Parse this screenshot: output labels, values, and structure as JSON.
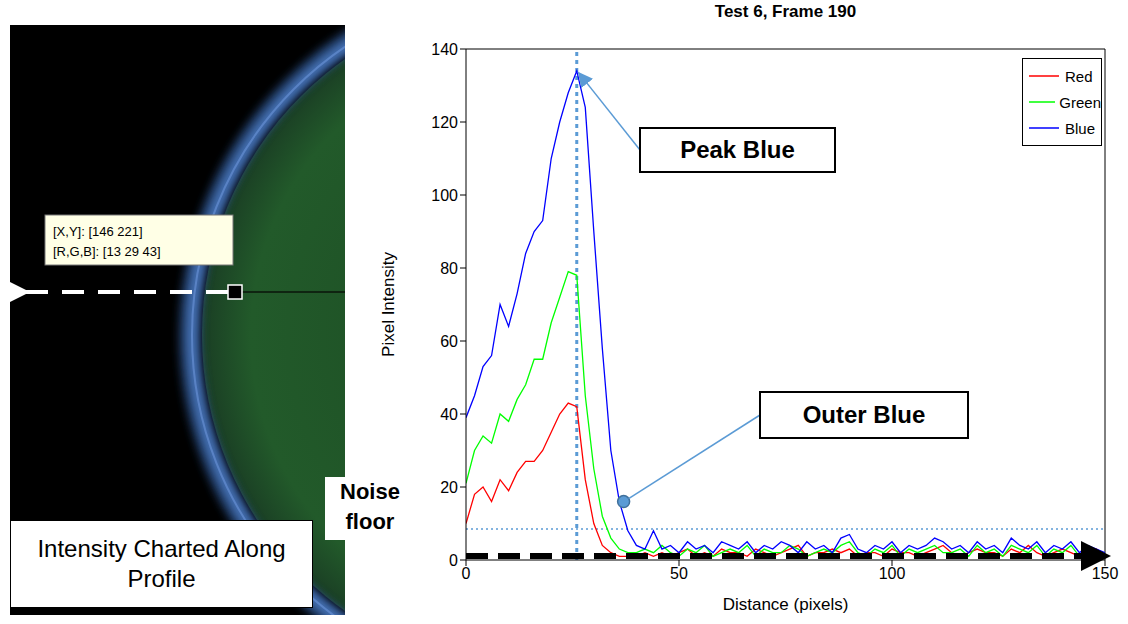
{
  "chart_data": {
    "type": "line",
    "title": "Test 6, Frame 190",
    "x_label": "Distance (pixels)",
    "y_label": "Pixel Intensity",
    "x": [
      0,
      2,
      4,
      6,
      8,
      10,
      12,
      14,
      16,
      18,
      20,
      22,
      24,
      26,
      28,
      30,
      32,
      34,
      36,
      38,
      40,
      42,
      44,
      46,
      48,
      50,
      52,
      54,
      56,
      58,
      60,
      62,
      64,
      66,
      68,
      70,
      72,
      74,
      76,
      78,
      80,
      82,
      84,
      86,
      88,
      90,
      92,
      94,
      96,
      98,
      100,
      102,
      104,
      106,
      108,
      110,
      112,
      114,
      116,
      118,
      120,
      122,
      124,
      126,
      128,
      130,
      132,
      134,
      136,
      138,
      140,
      142,
      144,
      146,
      148,
      150
    ],
    "series": [
      {
        "name": "Red",
        "color": "#ff0000",
        "values": [
          10,
          18,
          20,
          16,
          22,
          19,
          24,
          27,
          27,
          30,
          35,
          40,
          43,
          42,
          22,
          10,
          4,
          2,
          1,
          1,
          1,
          2,
          1,
          2,
          1,
          2,
          3,
          1,
          2,
          1,
          3,
          2,
          2,
          1,
          3,
          2,
          1,
          2,
          3,
          4,
          1,
          2,
          2,
          3,
          2,
          3,
          1,
          2,
          2,
          1,
          3,
          2,
          2,
          1,
          2,
          3,
          4,
          2,
          1,
          2,
          3,
          2,
          2,
          1,
          3,
          2,
          4,
          2,
          1,
          2,
          3,
          2,
          1,
          2,
          3,
          1
        ]
      },
      {
        "name": "Green",
        "color": "#00ff00",
        "values": [
          21,
          30,
          34,
          32,
          40,
          38,
          44,
          48,
          55,
          55,
          65,
          72,
          79,
          78,
          45,
          25,
          12,
          6,
          3,
          2,
          2,
          3,
          2,
          4,
          2,
          1,
          3,
          2,
          4,
          1,
          2,
          3,
          2,
          4,
          1,
          3,
          2,
          2,
          4,
          3,
          1,
          2,
          3,
          2,
          4,
          5,
          2,
          1,
          3,
          2,
          4,
          1,
          3,
          2,
          3,
          4,
          2,
          2,
          3,
          1,
          4,
          2,
          3,
          1,
          4,
          3,
          2,
          4,
          1,
          3,
          2,
          4,
          1,
          3,
          2,
          1
        ]
      },
      {
        "name": "Blue",
        "color": "#0000ff",
        "values": [
          39,
          45,
          53,
          56,
          70,
          64,
          73,
          84,
          90,
          93,
          110,
          120,
          128,
          134,
          124,
          90,
          58,
          30,
          16,
          8,
          4,
          3,
          8,
          3,
          4,
          2,
          5,
          3,
          4,
          2,
          5,
          4,
          3,
          5,
          2,
          4,
          3,
          5,
          4,
          2,
          5,
          3,
          4,
          2,
          6,
          7,
          3,
          2,
          4,
          3,
          5,
          2,
          4,
          3,
          4,
          6,
          5,
          3,
          4,
          2,
          5,
          3,
          4,
          2,
          6,
          4,
          3,
          5,
          2,
          4,
          3,
          5,
          2,
          4,
          3,
          2
        ]
      }
    ],
    "xlim": [
      0,
      150
    ],
    "xticks": [
      0,
      50,
      100,
      150
    ],
    "ylim": [
      0,
      140
    ],
    "yticks": [
      0,
      20,
      40,
      60,
      80,
      100,
      120,
      140
    ],
    "grid": false,
    "legend": "top-right",
    "annotations": [
      {
        "text": "Peak Blue",
        "x": 26,
        "y": 134
      },
      {
        "text": "Outer Blue",
        "x": 37,
        "y": 16
      },
      {
        "text": "Noise floor",
        "y": 8.5
      }
    ]
  },
  "image_panel": {
    "datatip": [
      "[X,Y]: [146 221]",
      "[R,G,B]: [13 29 43]"
    ],
    "caption": "Intensity Charted Along Profile"
  }
}
